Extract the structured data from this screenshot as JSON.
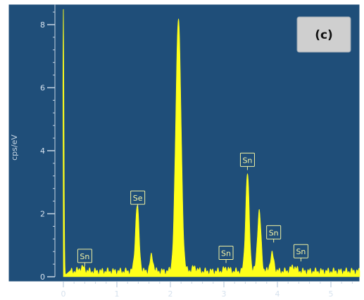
{
  "chart_data": {
    "type": "area",
    "title": "",
    "xlabel": "",
    "ylabel": "cps/eV",
    "panel_label": "(c)",
    "xlim": [
      -0.05,
      5.55
    ],
    "ylim": [
      -0.1,
      8.6
    ],
    "x_ticks": [
      0,
      1,
      2,
      3,
      4,
      5
    ],
    "y_ticks": [
      0,
      2,
      4,
      6,
      8
    ],
    "y_minor_step": 0.4,
    "x_minor_step": 0.2,
    "grid": false,
    "colors": {
      "background": "#1f4e79",
      "spectrum": "#ffff1a",
      "frame": "#ffffff",
      "panel_box": "#cfcfcf",
      "label_box": "#f0f0a0"
    },
    "baseline_level": 0.18,
    "peaks": [
      {
        "x": 0.0,
        "height": 8.6,
        "width": 0.012
      },
      {
        "x": 0.35,
        "height": 0.12,
        "width": 0.05
      },
      {
        "x": 1.38,
        "height": 2.1,
        "width": 0.035
      },
      {
        "x": 1.65,
        "height": 0.5,
        "width": 0.03
      },
      {
        "x": 2.15,
        "height": 8.1,
        "width": 0.05
      },
      {
        "x": 2.45,
        "height": 0.12,
        "width": 0.05
      },
      {
        "x": 3.05,
        "height": 0.1,
        "width": 0.05
      },
      {
        "x": 3.44,
        "height": 3.1,
        "width": 0.035
      },
      {
        "x": 3.66,
        "height": 1.9,
        "width": 0.035
      },
      {
        "x": 3.9,
        "height": 0.55,
        "width": 0.035
      },
      {
        "x": 4.3,
        "height": 0.15,
        "width": 0.05
      }
    ],
    "peak_labels": [
      {
        "text": "Sn",
        "x": 0.4,
        "y": 0.65
      },
      {
        "text": "Se",
        "x": 1.39,
        "y": 2.5
      },
      {
        "text": "Sn",
        "x": 3.04,
        "y": 0.75
      },
      {
        "text": "Sn",
        "x": 3.44,
        "y": 3.7
      },
      {
        "text": "Sn",
        "x": 3.93,
        "y": 1.4
      },
      {
        "text": "Sn",
        "x": 4.44,
        "y": 0.8
      }
    ]
  }
}
